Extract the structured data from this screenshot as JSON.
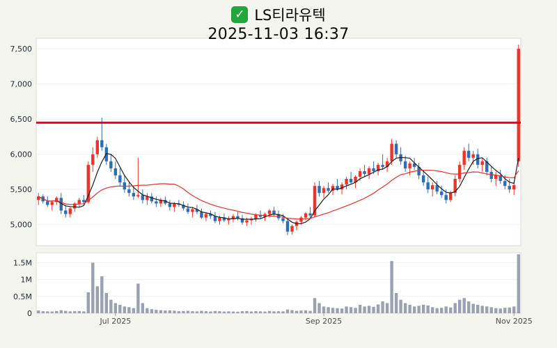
{
  "header": {
    "check_icon": "✓",
    "title": "LS티라유텍",
    "datetime": "2025-11-03 16:37"
  },
  "chart_data": {
    "type": "candlestick",
    "title": "LS티라유텍",
    "subtitle": "2025-11-03 16:37",
    "legend": "none",
    "grid": "faint-horizontal",
    "columns": [
      "open",
      "high",
      "low",
      "close",
      "volume"
    ],
    "x_axis": {
      "ticks": [
        {
          "label": "Jul 2025",
          "index": 17
        },
        {
          "label": "Sep 2025",
          "index": 63
        },
        {
          "label": "Nov 2025",
          "index": 105
        }
      ]
    },
    "y_axis": {
      "range": [
        4700,
        7650
      ],
      "ticks": [
        {
          "label": "5,000",
          "value": 5000
        },
        {
          "label": "5,500",
          "value": 5500
        },
        {
          "label": "6,000",
          "value": 6000
        },
        {
          "label": "6,500",
          "value": 6500
        },
        {
          "label": "7,000",
          "value": 7000
        },
        {
          "label": "7,500",
          "value": 7500
        }
      ]
    },
    "volume_axis": {
      "range": [
        0,
        1800000
      ],
      "ticks": [
        {
          "label": "0",
          "value": 0
        },
        {
          "label": "0.5M",
          "value": 500000
        },
        {
          "label": "1M",
          "value": 1000000
        },
        {
          "label": "1.5M",
          "value": 1500000
        }
      ]
    },
    "reference_line": {
      "value": 6450,
      "color": "#e8001f"
    },
    "moving_averages": [
      {
        "period": 5,
        "color": "#1a1a1a"
      },
      {
        "period": 20,
        "color": "#e03131"
      }
    ],
    "colors": {
      "up": "#e8352e",
      "down": "#2e6db4",
      "volume": "#9aa2b1"
    },
    "candles": [
      [
        5350,
        5450,
        5280,
        5400,
        80000
      ],
      [
        5400,
        5430,
        5300,
        5330,
        60000
      ],
      [
        5330,
        5400,
        5250,
        5280,
        55000
      ],
      [
        5280,
        5350,
        5200,
        5320,
        50000
      ],
      [
        5320,
        5400,
        5280,
        5380,
        65000
      ],
      [
        5380,
        5450,
        5150,
        5200,
        90000
      ],
      [
        5200,
        5280,
        5100,
        5150,
        70000
      ],
      [
        5150,
        5250,
        5100,
        5230,
        55000
      ],
      [
        5230,
        5320,
        5180,
        5300,
        60000
      ],
      [
        5300,
        5380,
        5250,
        5350,
        65000
      ],
      [
        5350,
        5420,
        5280,
        5320,
        55000
      ],
      [
        5320,
        5900,
        5300,
        5850,
        620000
      ],
      [
        5850,
        6100,
        5750,
        6000,
        1500000
      ],
      [
        6000,
        6250,
        5950,
        6200,
        800000
      ],
      [
        6200,
        6520,
        6050,
        6100,
        1100000
      ],
      [
        6100,
        6150,
        5850,
        5900,
        600000
      ],
      [
        5900,
        6000,
        5750,
        5800,
        400000
      ],
      [
        5800,
        5900,
        5650,
        5700,
        300000
      ],
      [
        5700,
        5800,
        5550,
        5600,
        250000
      ],
      [
        5600,
        5700,
        5450,
        5500,
        200000
      ],
      [
        5500,
        5600,
        5400,
        5450,
        180000
      ],
      [
        5450,
        5550,
        5350,
        5400,
        150000
      ],
      [
        5400,
        5950,
        5380,
        5420,
        880000
      ],
      [
        5420,
        5500,
        5300,
        5350,
        300000
      ],
      [
        5350,
        5450,
        5280,
        5400,
        150000
      ],
      [
        5400,
        5450,
        5300,
        5330,
        120000
      ],
      [
        5330,
        5400,
        5250,
        5300,
        100000
      ],
      [
        5300,
        5380,
        5250,
        5350,
        90000
      ],
      [
        5350,
        5400,
        5280,
        5300,
        80000
      ],
      [
        5300,
        5350,
        5200,
        5250,
        85000
      ],
      [
        5250,
        5320,
        5180,
        5300,
        75000
      ],
      [
        5300,
        5350,
        5250,
        5280,
        60000
      ],
      [
        5280,
        5330,
        5200,
        5230,
        65000
      ],
      [
        5230,
        5300,
        5150,
        5180,
        70000
      ],
      [
        5180,
        5250,
        5100,
        5220,
        60000
      ],
      [
        5220,
        5280,
        5150,
        5180,
        55000
      ],
      [
        5180,
        5230,
        5080,
        5100,
        70000
      ],
      [
        5100,
        5180,
        5050,
        5150,
        60000
      ],
      [
        5150,
        5200,
        5080,
        5120,
        50000
      ],
      [
        5120,
        5180,
        5020,
        5050,
        65000
      ],
      [
        5050,
        5130,
        5000,
        5100,
        60000
      ],
      [
        5100,
        5160,
        5040,
        5060,
        50000
      ],
      [
        5060,
        5120,
        5000,
        5080,
        55000
      ],
      [
        5080,
        5150,
        5030,
        5120,
        50000
      ],
      [
        5120,
        5180,
        5060,
        5090,
        45000
      ],
      [
        5090,
        5140,
        5000,
        5030,
        60000
      ],
      [
        5030,
        5100,
        4980,
        5060,
        65000
      ],
      [
        5060,
        5110,
        5000,
        5080,
        50000
      ],
      [
        5080,
        5160,
        5040,
        5140,
        60000
      ],
      [
        5140,
        5200,
        5080,
        5110,
        55000
      ],
      [
        5110,
        5170,
        5050,
        5150,
        50000
      ],
      [
        5150,
        5220,
        5100,
        5200,
        65000
      ],
      [
        5200,
        5250,
        5120,
        5150,
        55000
      ],
      [
        5150,
        5200,
        5060,
        5090,
        60000
      ],
      [
        5090,
        5150,
        5020,
        5050,
        55000
      ],
      [
        5050,
        5100,
        4850,
        4900,
        110000
      ],
      [
        4900,
        5000,
        4860,
        4980,
        90000
      ],
      [
        4980,
        5060,
        4920,
        5040,
        70000
      ],
      [
        5040,
        5120,
        5000,
        5100,
        80000
      ],
      [
        5100,
        5180,
        5060,
        5160,
        85000
      ],
      [
        5160,
        5250,
        5100,
        5130,
        70000
      ],
      [
        5130,
        5600,
        5100,
        5550,
        450000
      ],
      [
        5550,
        5620,
        5400,
        5450,
        300000
      ],
      [
        5450,
        5550,
        5380,
        5520,
        200000
      ],
      [
        5520,
        5600,
        5450,
        5480,
        180000
      ],
      [
        5480,
        5580,
        5420,
        5550,
        160000
      ],
      [
        5550,
        5650,
        5480,
        5500,
        150000
      ],
      [
        5500,
        5600,
        5430,
        5570,
        140000
      ],
      [
        5570,
        5680,
        5500,
        5650,
        200000
      ],
      [
        5650,
        5750,
        5580,
        5600,
        180000
      ],
      [
        5600,
        5700,
        5520,
        5680,
        160000
      ],
      [
        5680,
        5800,
        5620,
        5760,
        250000
      ],
      [
        5760,
        5850,
        5680,
        5720,
        200000
      ],
      [
        5720,
        5830,
        5650,
        5800,
        220000
      ],
      [
        5800,
        5900,
        5720,
        5760,
        190000
      ],
      [
        5760,
        5880,
        5700,
        5850,
        260000
      ],
      [
        5850,
        6000,
        5780,
        5820,
        350000
      ],
      [
        5820,
        5950,
        5750,
        5900,
        300000
      ],
      [
        5900,
        6220,
        5850,
        6150,
        1550000
      ],
      [
        6150,
        6200,
        5950,
        6000,
        600000
      ],
      [
        6000,
        6100,
        5850,
        5900,
        400000
      ],
      [
        5900,
        5980,
        5750,
        5800,
        300000
      ],
      [
        5800,
        5900,
        5700,
        5870,
        250000
      ],
      [
        5870,
        5950,
        5780,
        5820,
        200000
      ],
      [
        5820,
        5880,
        5650,
        5700,
        220000
      ],
      [
        5700,
        5780,
        5550,
        5600,
        250000
      ],
      [
        5600,
        5680,
        5450,
        5500,
        230000
      ],
      [
        5500,
        5600,
        5400,
        5560,
        180000
      ],
      [
        5560,
        5620,
        5430,
        5470,
        150000
      ],
      [
        5470,
        5550,
        5380,
        5420,
        160000
      ],
      [
        5420,
        5500,
        5300,
        5350,
        200000
      ],
      [
        5350,
        5480,
        5320,
        5450,
        170000
      ],
      [
        5450,
        5700,
        5400,
        5650,
        300000
      ],
      [
        5650,
        5900,
        5600,
        5850,
        400000
      ],
      [
        5850,
        6100,
        5780,
        6050,
        450000
      ],
      [
        6050,
        6150,
        5900,
        5950,
        350000
      ],
      [
        5950,
        6050,
        5850,
        6000,
        280000
      ],
      [
        6000,
        6080,
        5800,
        5850,
        250000
      ],
      [
        5850,
        5950,
        5750,
        5900,
        220000
      ],
      [
        5900,
        5950,
        5700,
        5750,
        200000
      ],
      [
        5750,
        5820,
        5600,
        5650,
        180000
      ],
      [
        5650,
        5750,
        5550,
        5700,
        150000
      ],
      [
        5700,
        5780,
        5580,
        5620,
        140000
      ],
      [
        5620,
        5700,
        5500,
        5550,
        160000
      ],
      [
        5550,
        5650,
        5450,
        5500,
        170000
      ],
      [
        5500,
        5600,
        5420,
        5560,
        200000
      ],
      [
        5900,
        7560,
        5820,
        7500,
        1750000
      ]
    ]
  }
}
